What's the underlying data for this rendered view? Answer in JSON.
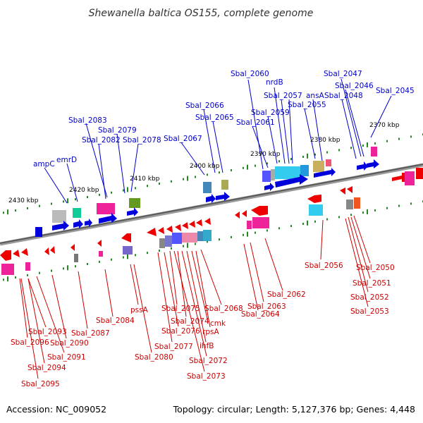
{
  "title": "Shewanella baltica OS155, complete genome",
  "footer": {
    "accession": "Accession: NC_009052",
    "summary": "Topology: circular; Length: 5,127,376 bp; Genes: 4,448"
  },
  "colors": {
    "forward": "#0000dd",
    "reverse": "#dd0000",
    "backbone": "#777777",
    "ticks": "#228822"
  },
  "ticks": [
    "2370 kbp",
    "2380 kbp",
    "2390 kbp",
    "2400 kbp",
    "2410 kbp",
    "2420 kbp",
    "2430 kbp"
  ],
  "forward_genes": [
    "Sbal_2060",
    "nrdB",
    "Sbal_2047",
    "Sbal_2046",
    "Sbal_2057",
    "ansA",
    "Sbal_2048",
    "Sbal_2045",
    "Sbal_2066",
    "Sbal_2055",
    "Sbal_2059",
    "Sbal_2065",
    "Sbal_2061",
    "Sbal_2083",
    "Sbal_2079",
    "Sbal_2082",
    "Sbal_2078",
    "Sbal_2067",
    "emrD",
    "ampC"
  ],
  "reverse_genes": [
    "Sbal_2056",
    "Sbal_2050",
    "Sbal_2051",
    "Sbal_2062",
    "Sbal_2052",
    "Sbal_2053",
    "pssA",
    "Sbal_2075",
    "Sbal_2068",
    "Sbal_2063",
    "Sbal_2064",
    "Sbal_2084",
    "Sbal_2074",
    "cmk",
    "Sbal_2093",
    "Sbal_2076",
    "rpsA",
    "Sbal_2087",
    "Sbal_2096",
    "Sbal_2090",
    "Sbal_2077",
    "ihfB",
    "Sbal_2091",
    "Sbal_2080",
    "Sbal_2072",
    "Sbal_2094",
    "Sbal_2073",
    "Sbal_2095"
  ]
}
